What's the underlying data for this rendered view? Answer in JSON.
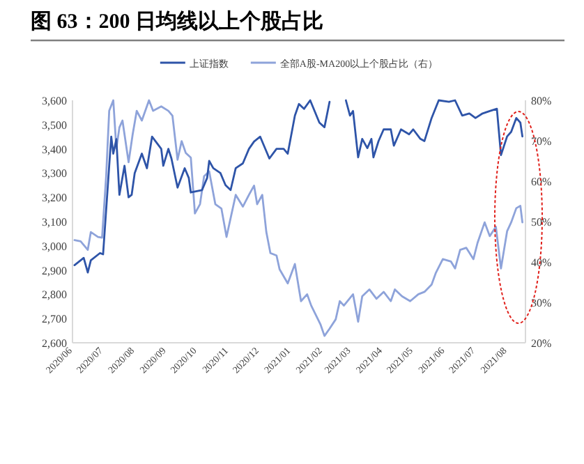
{
  "chart_data": {
    "type": "line",
    "title": "图 63：200 日均线以上个股占比",
    "legend": "top",
    "xlim": [
      "2020-06-01",
      "2021-08-19"
    ],
    "xticks": [
      {
        "value": "2020-06-01",
        "label": "2020/06"
      },
      {
        "value": "2020-07-01",
        "label": "2020/07"
      },
      {
        "value": "2020-08-01",
        "label": "2020/08"
      },
      {
        "value": "2020-09-01",
        "label": "2020/09"
      },
      {
        "value": "2020-10-01",
        "label": "2020/10"
      },
      {
        "value": "2020-11-01",
        "label": "2020/11"
      },
      {
        "value": "2020-12-01",
        "label": "2020/12"
      },
      {
        "value": "2021-01-01",
        "label": "2021/01"
      },
      {
        "value": "2021-02-01",
        "label": "2021/02"
      },
      {
        "value": "2021-03-01",
        "label": "2021/03"
      },
      {
        "value": "2021-04-01",
        "label": "2021/04"
      },
      {
        "value": "2021-05-01",
        "label": "2021/05"
      },
      {
        "value": "2021-06-01",
        "label": "2021/06"
      },
      {
        "value": "2021-07-01",
        "label": "2021/07"
      },
      {
        "value": "2021-08-01",
        "label": "2021/08"
      }
    ],
    "ylim": [
      2600,
      3600
    ],
    "yticks": [
      {
        "value": 2600,
        "label": "2,600"
      },
      {
        "value": 2700,
        "label": "2,700"
      },
      {
        "value": 2800,
        "label": "2,800"
      },
      {
        "value": 2900,
        "label": "2,900"
      },
      {
        "value": 3000,
        "label": "3,000"
      },
      {
        "value": 3100,
        "label": "3,100"
      },
      {
        "value": 3200,
        "label": "3,200"
      },
      {
        "value": 3300,
        "label": "3,300"
      },
      {
        "value": 3400,
        "label": "3,400"
      },
      {
        "value": 3500,
        "label": "3,500"
      },
      {
        "value": 3600,
        "label": "3,600"
      }
    ],
    "y2lim": [
      20,
      80
    ],
    "y2ticks": [
      {
        "value": 20,
        "label": "20%"
      },
      {
        "value": 30,
        "label": "30%"
      },
      {
        "value": 40,
        "label": "40%"
      },
      {
        "value": 50,
        "label": "50%"
      },
      {
        "value": 60,
        "label": "60%"
      },
      {
        "value": 70,
        "label": "70%"
      },
      {
        "value": 80,
        "label": "80%"
      }
    ],
    "series": [
      {
        "name": "上证指数",
        "color": "#2e54a8",
        "x": [
          "2020-06-03",
          "2020-06-12",
          "2020-06-16",
          "2020-06-19",
          "2020-06-28",
          "2020-07-01",
          "2020-07-07",
          "2020-07-09",
          "2020-07-11",
          "2020-07-14",
          "2020-07-17",
          "2020-07-22",
          "2020-07-26",
          "2020-07-29",
          "2020-08-01",
          "2020-08-08",
          "2020-08-13",
          "2020-08-18",
          "2020-08-27",
          "2020-08-29",
          "2020-09-03",
          "2020-09-06",
          "2020-09-12",
          "2020-09-19",
          "2020-09-23",
          "2020-09-25",
          "2020-10-06",
          "2020-10-11",
          "2020-10-13",
          "2020-10-17",
          "2020-10-24",
          "2020-10-29",
          "2020-11-03",
          "2020-11-08",
          "2020-11-15",
          "2020-11-21",
          "2020-11-26",
          "2020-12-02",
          "2020-12-11",
          "2020-12-18",
          "2020-12-25",
          "2020-12-29",
          "2021-01-05",
          "2021-01-09",
          "2021-01-14",
          "2021-01-20",
          "2021-01-29",
          "2021-02-03",
          "2021-02-08",
          "2021-02-16",
          "2021-02-24",
          "2021-02-28",
          "2021-03-03",
          "2021-03-08",
          "2021-03-12",
          "2021-03-17",
          "2021-03-21",
          "2021-03-23",
          "2021-03-28",
          "2021-04-02",
          "2021-04-09",
          "2021-04-12",
          "2021-04-19",
          "2021-04-27",
          "2021-05-01",
          "2021-05-08",
          "2021-05-12",
          "2021-05-19",
          "2021-05-26",
          "2021-06-05",
          "2021-06-11",
          "2021-06-18",
          "2021-06-25",
          "2021-07-01",
          "2021-07-08",
          "2021-07-15",
          "2021-07-22",
          "2021-07-26",
          "2021-08-01",
          "2021-08-05",
          "2021-08-10",
          "2021-08-14",
          "2021-08-16"
        ],
        "values": [
          2920,
          2950,
          2890,
          2940,
          2970,
          2965,
          3330,
          3450,
          3380,
          3440,
          3210,
          3330,
          3200,
          3210,
          3300,
          3380,
          3320,
          3450,
          3400,
          3330,
          3400,
          3360,
          3240,
          3320,
          3280,
          3220,
          3230,
          3280,
          3350,
          3320,
          3300,
          3250,
          3230,
          3320,
          3340,
          3400,
          3430,
          3450,
          3360,
          3400,
          3400,
          3380,
          3537,
          3585,
          3565,
          3600,
          3508,
          3489,
          3594,
          null,
          3600,
          3537,
          3556,
          3365,
          3441,
          3403,
          3441,
          3365,
          3432,
          3480,
          3480,
          3413,
          3480,
          3460,
          3480,
          3441,
          3432,
          3527,
          3600,
          3594,
          3600,
          3537,
          3546,
          3527,
          3546,
          3556,
          3565,
          3374,
          3451,
          3470,
          3527,
          3508,
          3451
        ]
      },
      {
        "name": "全部A股-MA200以上个股占比（右）",
        "color": "#8ea3da",
        "axis": "y2",
        "x": [
          "2020-06-03",
          "2020-06-09",
          "2020-06-16",
          "2020-06-19",
          "2020-06-26",
          "2020-06-30",
          "2020-07-04",
          "2020-07-07",
          "2020-07-11",
          "2020-07-14",
          "2020-07-17",
          "2020-07-20",
          "2020-07-26",
          "2020-07-30",
          "2020-08-03",
          "2020-08-08",
          "2020-08-15",
          "2020-08-19",
          "2020-08-27",
          "2020-09-03",
          "2020-09-07",
          "2020-09-12",
          "2020-09-16",
          "2020-09-20",
          "2020-09-25",
          "2020-09-29",
          "2020-10-04",
          "2020-10-08",
          "2020-10-13",
          "2020-10-19",
          "2020-10-25",
          "2020-10-30",
          "2020-11-04",
          "2020-11-08",
          "2020-11-15",
          "2020-11-21",
          "2020-11-26",
          "2020-11-29",
          "2020-12-04",
          "2020-12-08",
          "2020-12-12",
          "2020-12-18",
          "2020-12-21",
          "2020-12-29",
          "2021-01-05",
          "2021-01-11",
          "2021-01-17",
          "2021-01-21",
          "2021-01-30",
          "2021-02-03",
          "2021-02-08",
          "2021-02-14",
          "2021-02-18",
          "2021-02-22",
          "2021-03-03",
          "2021-03-08",
          "2021-03-12",
          "2021-03-19",
          "2021-03-26",
          "2021-04-02",
          "2021-04-09",
          "2021-04-13",
          "2021-04-20",
          "2021-04-28",
          "2021-05-06",
          "2021-05-12",
          "2021-05-19",
          "2021-05-23",
          "2021-05-30",
          "2021-06-07",
          "2021-06-11",
          "2021-06-16",
          "2021-06-22",
          "2021-06-29",
          "2021-07-03",
          "2021-07-10",
          "2021-07-15",
          "2021-07-21",
          "2021-07-26",
          "2021-08-01",
          "2021-08-05",
          "2021-08-10",
          "2021-08-14",
          "2021-08-16"
        ],
        "values": [
          45.4,
          45.1,
          43,
          47.4,
          46.2,
          46,
          61.2,
          77.4,
          80,
          68.1,
          73.3,
          75,
          64.7,
          71.6,
          77.4,
          75,
          80,
          77.4,
          78.5,
          77.4,
          76.2,
          65.3,
          69.9,
          67,
          65.8,
          52,
          54.3,
          61.2,
          62.4,
          54.3,
          53.2,
          46.2,
          52,
          56.6,
          53.7,
          56.6,
          58.9,
          54.3,
          56.6,
          47.4,
          42.2,
          41.6,
          38.2,
          34.7,
          39.5,
          30.3,
          32,
          29.2,
          24.6,
          21.7,
          23.5,
          25.8,
          30.3,
          29.2,
          32,
          25.2,
          31.5,
          33.2,
          30.9,
          32.6,
          30.3,
          33.2,
          31.5,
          30.3,
          32,
          32.6,
          34.4,
          37.2,
          40.7,
          40.1,
          38.4,
          43,
          43.5,
          40.7,
          44.7,
          49.8,
          46.4,
          48.7,
          38.4,
          47.6,
          49.8,
          53.3,
          53.9,
          49.8
        ]
      }
    ]
  }
}
